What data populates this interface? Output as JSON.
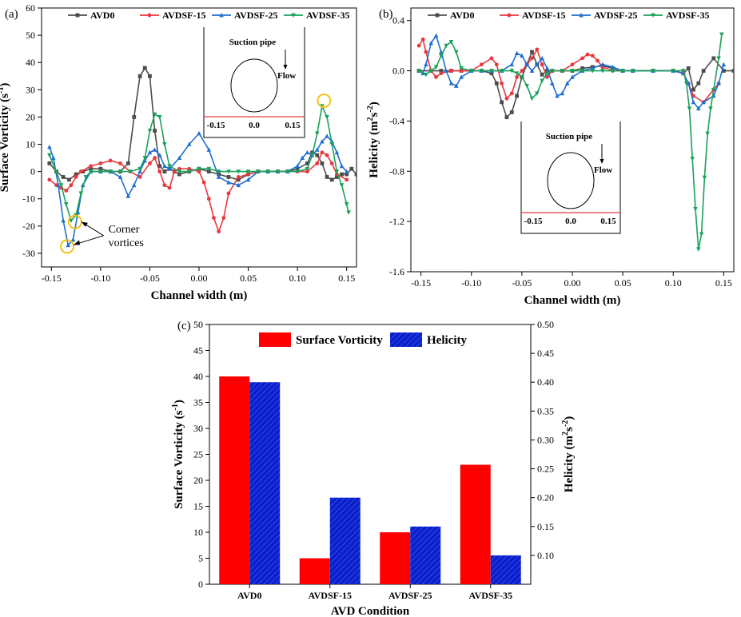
{
  "chart_data": [
    {
      "id": "a",
      "type": "line",
      "panel_label": "(a)",
      "title": "",
      "xlabel": "Channel width (m)",
      "ylabel_main": "Surface Vorticity (s",
      "ylabel_sup": "-1",
      "ylabel_end": ")",
      "xlim": [
        -0.16,
        0.16
      ],
      "ylim": [
        -35,
        60
      ],
      "xticks": [
        -0.15,
        -0.1,
        -0.05,
        0.0,
        0.05,
        0.1,
        0.15
      ],
      "xtick_labels": [
        "-0.15",
        "-0.10",
        "-0.05",
        "0.00",
        "0.05",
        "0.10",
        "0.15"
      ],
      "yticks": [
        -30,
        -20,
        -10,
        0,
        10,
        20,
        30,
        40,
        50,
        60
      ],
      "ytick_labels": [
        "-30",
        "-20",
        "-10",
        "0",
        "10",
        "20",
        "30",
        "40",
        "50",
        "60"
      ],
      "series": [
        {
          "name": "AVD0",
          "color": "#4d4d4d",
          "marker": "square",
          "x": [
            -0.152,
            -0.145,
            -0.138,
            -0.132,
            -0.125,
            -0.118,
            -0.11,
            -0.1,
            -0.09,
            -0.08,
            -0.072,
            -0.066,
            -0.06,
            -0.055,
            -0.05,
            -0.045,
            -0.04,
            -0.035,
            -0.03,
            -0.025,
            -0.02,
            -0.01,
            0,
            0.01,
            0.02,
            0.03,
            0.04,
            0.05,
            0.06,
            0.07,
            0.08,
            0.09,
            0.1,
            0.11,
            0.115,
            0.12,
            0.125,
            0.13,
            0.135,
            0.14,
            0.145,
            0.15,
            0.155,
            0.16
          ],
          "y": [
            3,
            0,
            -2,
            -3,
            -1,
            0,
            1,
            1,
            0,
            0,
            3,
            20,
            35,
            38,
            35,
            15,
            2,
            0,
            1,
            0,
            -1,
            0,
            1,
            0,
            -1,
            -2,
            -3,
            -1,
            0,
            0,
            0,
            0,
            1,
            3,
            7,
            6,
            3,
            -2,
            -3,
            -2,
            -1,
            -1,
            1,
            -1
          ]
        },
        {
          "name": "AVDSF-15",
          "color": "#e8383d",
          "marker": "circle",
          "x": [
            -0.152,
            -0.145,
            -0.14,
            -0.135,
            -0.13,
            -0.125,
            -0.12,
            -0.11,
            -0.1,
            -0.09,
            -0.08,
            -0.07,
            -0.06,
            -0.05,
            -0.045,
            -0.04,
            -0.035,
            -0.03,
            -0.025,
            -0.02,
            -0.01,
            0,
            0.005,
            0.01,
            0.015,
            0.02,
            0.025,
            0.03,
            0.04,
            0.05,
            0.06,
            0.07,
            0.08,
            0.09,
            0.1,
            0.11,
            0.12,
            0.125,
            0.13,
            0.135,
            0.14,
            0.15
          ],
          "y": [
            -3,
            -5,
            -6,
            -7,
            -5,
            -2,
            0,
            2,
            3,
            4,
            3,
            0,
            -2,
            3,
            5,
            0,
            -5,
            -6,
            0,
            1,
            1,
            0,
            -4,
            -10,
            -17,
            -22,
            -17,
            -8,
            -2,
            -1,
            0,
            0,
            0,
            0,
            0,
            0,
            3,
            7,
            6,
            3,
            -1,
            -3
          ]
        },
        {
          "name": "AVDSF-25",
          "color": "#1f6fd0",
          "marker": "triangle-up",
          "x": [
            -0.152,
            -0.148,
            -0.143,
            -0.138,
            -0.133,
            -0.128,
            -0.123,
            -0.118,
            -0.11,
            -0.1,
            -0.09,
            -0.08,
            -0.072,
            -0.066,
            -0.06,
            -0.055,
            -0.05,
            -0.045,
            -0.04,
            -0.035,
            -0.03,
            -0.02,
            -0.01,
            0,
            0.01,
            0.02,
            0.03,
            0.04,
            0.05,
            0.06,
            0.07,
            0.08,
            0.09,
            0.1,
            0.105,
            0.11,
            0.115,
            0.12,
            0.125,
            0.13,
            0.135,
            0.14,
            0.145,
            0.15
          ],
          "y": [
            9,
            5,
            -5,
            -18,
            -27,
            -25,
            -15,
            -5,
            0,
            0,
            0,
            -2,
            -9,
            -5,
            0,
            4,
            7,
            8,
            6,
            2,
            1,
            5,
            10,
            14,
            8,
            -2,
            -4,
            -5,
            -3,
            0,
            0,
            0,
            0,
            2,
            5,
            7,
            6,
            8,
            11,
            13,
            11,
            7,
            2,
            0
          ]
        },
        {
          "name": "AVDSF-35",
          "color": "#1aa05a",
          "marker": "triangle-down",
          "x": [
            -0.152,
            -0.145,
            -0.14,
            -0.135,
            -0.13,
            -0.125,
            -0.12,
            -0.115,
            -0.11,
            -0.1,
            -0.09,
            -0.08,
            -0.07,
            -0.06,
            -0.055,
            -0.05,
            -0.045,
            -0.04,
            -0.035,
            -0.03,
            -0.02,
            -0.01,
            0,
            0.01,
            0.02,
            0.03,
            0.04,
            0.05,
            0.06,
            0.07,
            0.08,
            0.09,
            0.1,
            0.11,
            0.115,
            0.12,
            0.125,
            0.13,
            0.135,
            0.14,
            0.145,
            0.15,
            0.152
          ],
          "y": [
            6,
            0,
            -5,
            -12,
            -18,
            -16,
            -8,
            -2,
            0,
            0,
            0,
            0,
            0,
            1,
            5,
            15,
            21,
            20,
            10,
            2,
            0,
            0,
            1,
            1,
            0,
            0,
            0,
            0,
            0,
            0,
            0,
            0,
            0,
            1,
            6,
            14,
            24,
            20,
            10,
            0,
            -5,
            -12,
            -15
          ]
        }
      ],
      "annotation": "Corner vortices",
      "inset": {
        "label": "Suction pipe",
        "flow": "Flow",
        "ticks": [
          "-0.15",
          "0.0",
          "0.15"
        ]
      }
    },
    {
      "id": "b",
      "type": "line",
      "panel_label": "(b)",
      "title": "",
      "xlabel": "Channel width (m)",
      "ylabel_main": "Helicity (m",
      "ylabel_sup": "2",
      "ylabel_mid": "s",
      "ylabel_sup2": "-2",
      "ylabel_end": ")",
      "xlim": [
        -0.16,
        0.16
      ],
      "ylim": [
        -1.6,
        0.5
      ],
      "xticks": [
        -0.15,
        -0.1,
        -0.05,
        0.0,
        0.05,
        0.1,
        0.15
      ],
      "xtick_labels": [
        "-0.15",
        "-0.10",
        "-0.05",
        "0.00",
        "0.05",
        "0.10",
        "0.15"
      ],
      "yticks": [
        -1.6,
        -1.2,
        -0.8,
        -0.4,
        0.0,
        0.4
      ],
      "ytick_labels": [
        "-1.6",
        "-1.2",
        "-0.8",
        "-0.4",
        "0.0",
        "0.4"
      ],
      "series": [
        {
          "name": "AVD0",
          "color": "#4d4d4d",
          "marker": "square",
          "x": [
            -0.152,
            -0.14,
            -0.13,
            -0.12,
            -0.11,
            -0.1,
            -0.09,
            -0.08,
            -0.075,
            -0.07,
            -0.065,
            -0.06,
            -0.055,
            -0.05,
            -0.045,
            -0.04,
            -0.035,
            -0.03,
            -0.025,
            -0.02,
            -0.01,
            0,
            0.01,
            0.02,
            0.03,
            0.04,
            0.05,
            0.06,
            0.08,
            0.1,
            0.11,
            0.115,
            0.12,
            0.125,
            0.13,
            0.14,
            0.15,
            0.16
          ],
          "y": [
            0,
            0,
            0,
            0,
            0,
            0,
            0,
            -0.02,
            -0.1,
            -0.25,
            -0.37,
            -0.33,
            -0.2,
            -0.05,
            0.05,
            0.15,
            0.05,
            -0.03,
            0,
            0,
            0,
            0,
            0.02,
            0.03,
            0.04,
            0.02,
            0,
            0,
            0,
            0,
            -0.02,
            0.02,
            -0.15,
            -0.1,
            0,
            0.1,
            0,
            0
          ]
        },
        {
          "name": "AVDSF-15",
          "color": "#e8383d",
          "marker": "circle",
          "x": [
            -0.152,
            -0.148,
            -0.145,
            -0.14,
            -0.135,
            -0.13,
            -0.12,
            -0.11,
            -0.1,
            -0.09,
            -0.08,
            -0.075,
            -0.07,
            -0.065,
            -0.06,
            -0.055,
            -0.05,
            -0.045,
            -0.04,
            -0.035,
            -0.03,
            -0.025,
            -0.02,
            -0.01,
            0,
            0.01,
            0.015,
            0.02,
            0.025,
            0.03,
            0.04,
            0.05,
            0.06,
            0.08,
            0.1,
            0.11,
            0.115,
            0.12,
            0.13,
            0.14,
            0.145
          ],
          "y": [
            0.2,
            0.25,
            0.15,
            0,
            -0.05,
            -0.02,
            0,
            0,
            0,
            0.05,
            0.1,
            0.05,
            -0.1,
            -0.22,
            -0.18,
            -0.05,
            0,
            0.05,
            0.1,
            0.17,
            0.05,
            -0.05,
            0,
            0,
            0.05,
            0.1,
            0.13,
            0.12,
            0.08,
            0.03,
            0,
            0,
            0,
            0,
            0,
            -0.02,
            -0.1,
            -0.2,
            -0.25,
            -0.15,
            -0.1
          ]
        },
        {
          "name": "AVDSF-25",
          "color": "#1f6fd0",
          "marker": "triangle-up",
          "x": [
            -0.152,
            -0.148,
            -0.145,
            -0.14,
            -0.135,
            -0.13,
            -0.125,
            -0.12,
            -0.115,
            -0.11,
            -0.1,
            -0.09,
            -0.08,
            -0.07,
            -0.06,
            -0.055,
            -0.05,
            -0.045,
            -0.04,
            -0.035,
            -0.03,
            -0.025,
            -0.02,
            -0.015,
            -0.01,
            -0.005,
            0,
            0.01,
            0.02,
            0.03,
            0.04,
            0.05,
            0.06,
            0.08,
            0.1,
            0.11,
            0.115,
            0.12,
            0.125,
            0.13,
            0.14,
            0.145,
            0.15
          ],
          "y": [
            0,
            -0.02,
            0.05,
            0.22,
            0.28,
            0.15,
            0,
            -0.1,
            -0.12,
            -0.05,
            0,
            0,
            0,
            0,
            0.05,
            0.14,
            0.12,
            0.05,
            0,
            0.05,
            0.1,
            0.02,
            -0.1,
            -0.2,
            -0.18,
            -0.1,
            -0.05,
            0,
            0.02,
            0.05,
            0.03,
            0,
            0,
            0,
            0,
            -0.02,
            -0.1,
            -0.25,
            -0.3,
            -0.25,
            -0.2,
            -0.1,
            0.05
          ]
        },
        {
          "name": "AVDSF-35",
          "color": "#1aa05a",
          "marker": "triangle-down",
          "x": [
            -0.152,
            -0.145,
            -0.14,
            -0.135,
            -0.13,
            -0.125,
            -0.12,
            -0.115,
            -0.11,
            -0.1,
            -0.09,
            -0.08,
            -0.07,
            -0.06,
            -0.055,
            -0.05,
            -0.045,
            -0.04,
            -0.035,
            -0.03,
            -0.025,
            -0.02,
            -0.01,
            0,
            0.01,
            0.02,
            0.03,
            0.04,
            0.05,
            0.06,
            0.08,
            0.1,
            0.11,
            0.113,
            0.116,
            0.119,
            0.122,
            0.125,
            0.128,
            0.131,
            0.134,
            0.137,
            0.14,
            0.145,
            0.148
          ],
          "y": [
            0,
            -0.03,
            0,
            0.03,
            0.12,
            0.2,
            0.23,
            0.15,
            0.02,
            0,
            0,
            0,
            0,
            0,
            -0.02,
            -0.05,
            -0.12,
            -0.22,
            -0.18,
            -0.08,
            -0.02,
            0,
            0,
            0,
            0,
            0,
            0,
            0,
            0,
            0,
            0,
            0,
            0,
            -0.1,
            -0.3,
            -0.7,
            -1.1,
            -1.42,
            -1.3,
            -0.85,
            -0.5,
            -0.3,
            -0.15,
            0.1,
            0.29
          ]
        }
      ],
      "inset": {
        "label": "Suction pipe",
        "flow": "Flow",
        "ticks": [
          "-0.15",
          "0.0",
          "0.15"
        ]
      }
    },
    {
      "id": "c",
      "type": "bar",
      "panel_label": "(c)",
      "title": "",
      "xlabel": "AVD Condition",
      "ylabel_main": "Surface Vorticity (s",
      "ylabel_sup": "-1",
      "ylabel_end": ")",
      "y2label_main": "Helicity (m",
      "y2label_sup": "2",
      "y2label_mid": "s",
      "y2label_sup2": "-2",
      "y2label_end": ")",
      "categories": [
        "AVD0",
        "AVDSF-15",
        "AVDSF-25",
        "AVDSF-35"
      ],
      "ylim": [
        0,
        50
      ],
      "y2lim": [
        0.05,
        0.5
      ],
      "yticks": [
        0,
        5,
        10,
        15,
        20,
        25,
        30,
        35,
        40,
        45,
        50
      ],
      "ytick_labels": [
        "0",
        "5",
        "10",
        "15",
        "20",
        "25",
        "30",
        "35",
        "40",
        "45",
        "50"
      ],
      "y2ticks": [
        0.1,
        0.15,
        0.2,
        0.25,
        0.3,
        0.35,
        0.4,
        0.45,
        0.5
      ],
      "y2tick_labels": [
        "0.10",
        "0.15",
        "0.20",
        "0.25",
        "0.30",
        "0.35",
        "0.40",
        "0.45",
        "0.50"
      ],
      "series": [
        {
          "name": "Surface Vorticity",
          "color": "#ff0000",
          "axis": "left",
          "values": [
            40,
            5,
            10,
            23
          ]
        },
        {
          "name": "Helicity",
          "color": "#0a1fc8",
          "axis": "right",
          "values": [
            0.4,
            0.2,
            0.15,
            0.1
          ]
        }
      ]
    }
  ]
}
